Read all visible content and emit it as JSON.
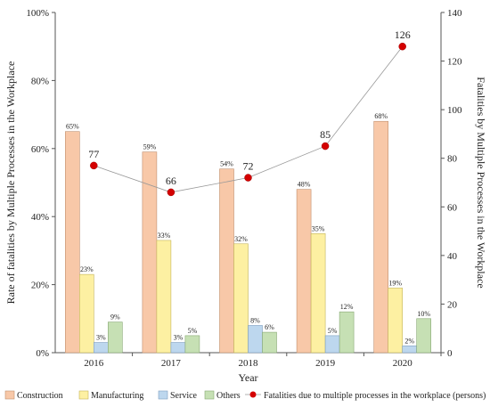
{
  "chart_data": {
    "type": "bar",
    "categories": [
      "2016",
      "2017",
      "2018",
      "2019",
      "2020"
    ],
    "xlabel": "Year",
    "ylabel_left": "Rate of fatalities by Multiple Processes in the Workplace",
    "ylabel_right": "Fatalities by Multiple Processes in the Workplace",
    "ylim_left": [
      0,
      100
    ],
    "yticks_left": [
      "0%",
      "20%",
      "40%",
      "60%",
      "80%",
      "100%"
    ],
    "ylim_right": [
      0,
      140
    ],
    "yticks_right": [
      "0",
      "20",
      "40",
      "60",
      "80",
      "100",
      "120",
      "140"
    ],
    "grid": false,
    "legend_position": "bottom",
    "series": [
      {
        "name": "Construction",
        "type": "bar",
        "axis": "left",
        "color": "#f8c8a8",
        "stroke": "#c0906f",
        "values": [
          65,
          59,
          54,
          48,
          68
        ],
        "labels": [
          "65%",
          "59%",
          "54%",
          "48%",
          "68%"
        ]
      },
      {
        "name": "Manufacturing",
        "type": "bar",
        "axis": "left",
        "color": "#fdf0a2",
        "stroke": "#c4b45a",
        "values": [
          23,
          33,
          32,
          35,
          19
        ],
        "labels": [
          "23%",
          "33%",
          "32%",
          "35%",
          "19%"
        ]
      },
      {
        "name": "Service",
        "type": "bar",
        "axis": "left",
        "color": "#bdd7ee",
        "stroke": "#7f9fbf",
        "values": [
          3,
          3,
          8,
          5,
          2
        ],
        "labels": [
          "3%",
          "3%",
          "8%",
          "5%",
          "2%"
        ]
      },
      {
        "name": "Others",
        "type": "bar",
        "axis": "left",
        "color": "#c6e0b4",
        "stroke": "#87a873",
        "values": [
          9,
          5,
          6,
          12,
          10
        ],
        "labels": [
          "9%",
          "5%",
          "6%",
          "12%",
          "10%"
        ]
      },
      {
        "name": "Fatalities due to multiple processes in the workplace (persons)",
        "type": "line",
        "axis": "right",
        "color": "#d40000",
        "line_color": "#999999",
        "values": [
          77,
          66,
          72,
          85,
          126
        ],
        "labels": [
          "77",
          "66",
          "72",
          "85",
          "126"
        ]
      }
    ]
  }
}
